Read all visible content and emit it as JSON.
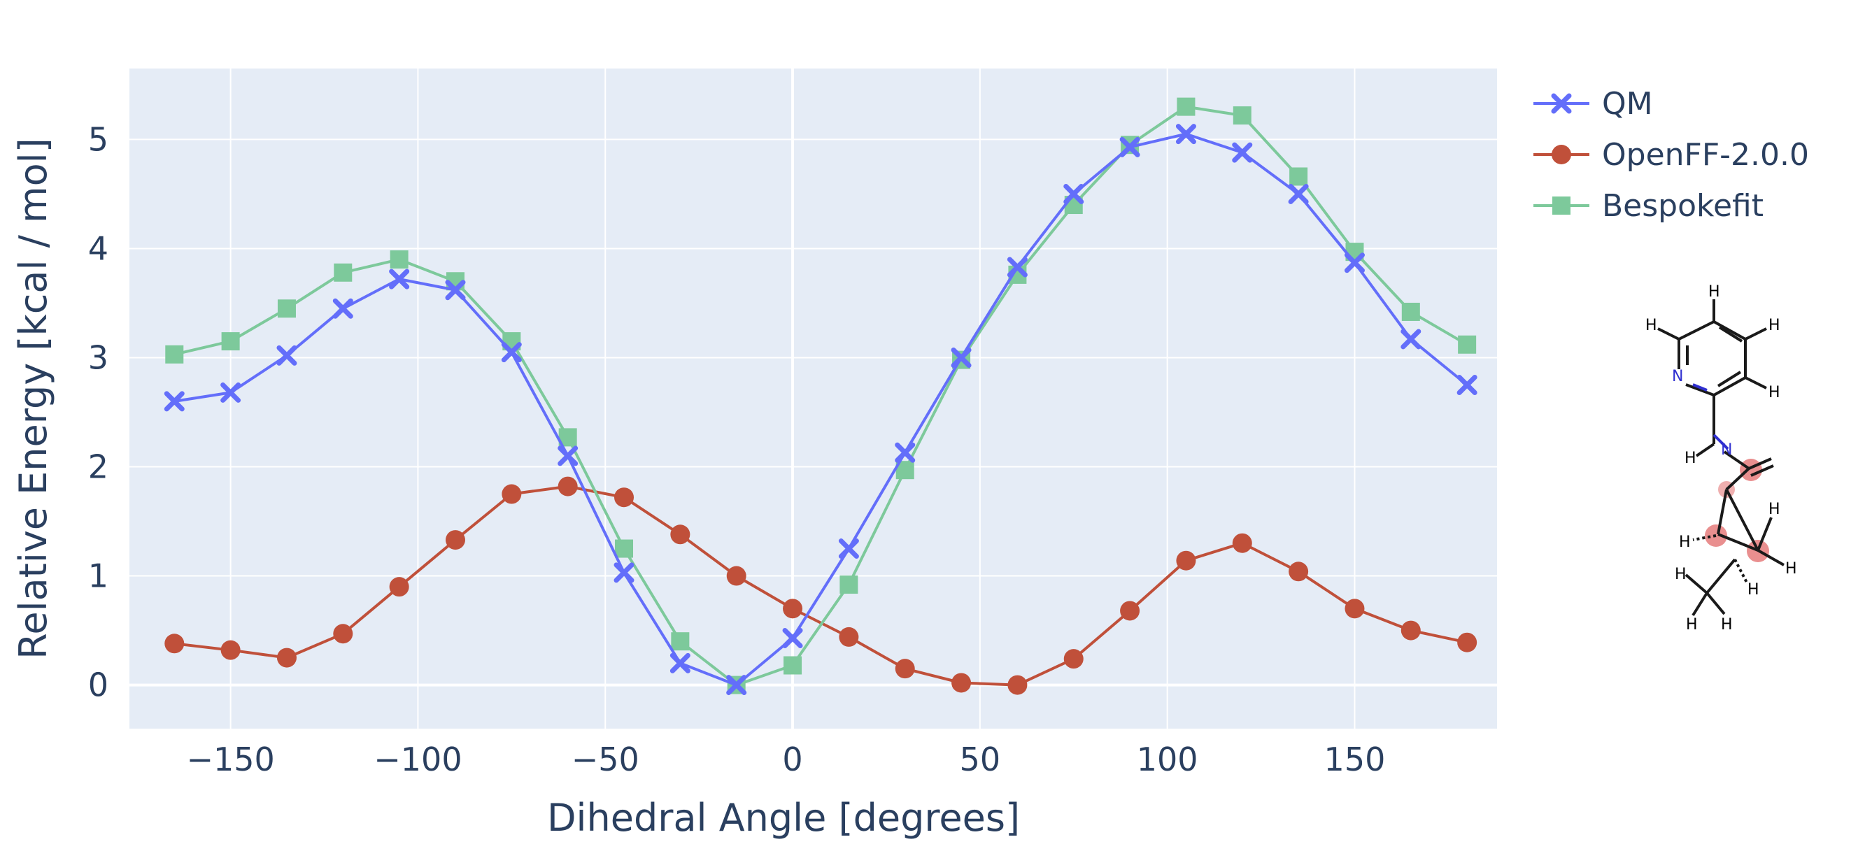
{
  "chart_data": {
    "type": "line",
    "xlabel": "Dihedral Angle [degrees]",
    "ylabel": "Relative Energy [kcal / mol]",
    "xlim": [
      -177,
      188
    ],
    "ylim": [
      -0.4,
      5.65
    ],
    "xticks": [
      -150,
      -100,
      -50,
      0,
      50,
      100,
      150
    ],
    "xtick_labels": [
      "−150",
      "−100",
      "−50",
      "0",
      "50",
      "100",
      "150"
    ],
    "yticks": [
      0,
      1,
      2,
      3,
      4,
      5
    ],
    "ytick_labels": [
      "0",
      "1",
      "2",
      "3",
      "4",
      "5"
    ],
    "grid": true,
    "legend_position": "top-right outside",
    "x": [
      -165,
      -150,
      -135,
      -120,
      -105,
      -90,
      -75,
      -60,
      -45,
      -30,
      -15,
      0,
      15,
      30,
      45,
      60,
      75,
      90,
      105,
      120,
      135,
      150,
      165,
      180
    ],
    "series": [
      {
        "name": "QM",
        "color": "#636efa",
        "marker": "x",
        "values": [
          2.6,
          2.68,
          3.02,
          3.45,
          3.72,
          3.62,
          3.05,
          2.1,
          1.03,
          0.2,
          0.0,
          0.43,
          1.25,
          2.13,
          3.0,
          3.83,
          4.5,
          4.93,
          5.05,
          4.88,
          4.5,
          3.87,
          3.17,
          2.75
        ]
      },
      {
        "name": "OpenFF-2.0.0",
        "color": "#c0503a",
        "marker": "circle",
        "values": [
          0.38,
          0.32,
          0.25,
          0.47,
          0.9,
          1.33,
          1.75,
          1.82,
          1.72,
          1.38,
          1.0,
          0.7,
          0.44,
          0.15,
          0.02,
          0.0,
          0.24,
          0.68,
          1.14,
          1.3,
          1.04,
          0.7,
          0.5,
          0.39
        ]
      },
      {
        "name": "Bespokefit",
        "color": "#7dc99b",
        "marker": "square",
        "values": [
          3.03,
          3.15,
          3.45,
          3.78,
          3.9,
          3.7,
          3.15,
          2.27,
          1.25,
          0.4,
          0.0,
          0.18,
          0.92,
          1.97,
          2.98,
          3.76,
          4.4,
          4.95,
          5.3,
          5.22,
          4.66,
          3.97,
          3.42,
          3.12
        ]
      }
    ]
  },
  "molecule": {
    "atom_labels": {
      "H": "H",
      "N": "N"
    },
    "colors": {
      "bond": "#1a1a1a",
      "nitrogen": "#3030d0",
      "highlight": "#e06060"
    }
  },
  "colors": {
    "plot_bg": "#e5ecf6",
    "grid": "#ffffff",
    "text": "#2a3f5f"
  }
}
